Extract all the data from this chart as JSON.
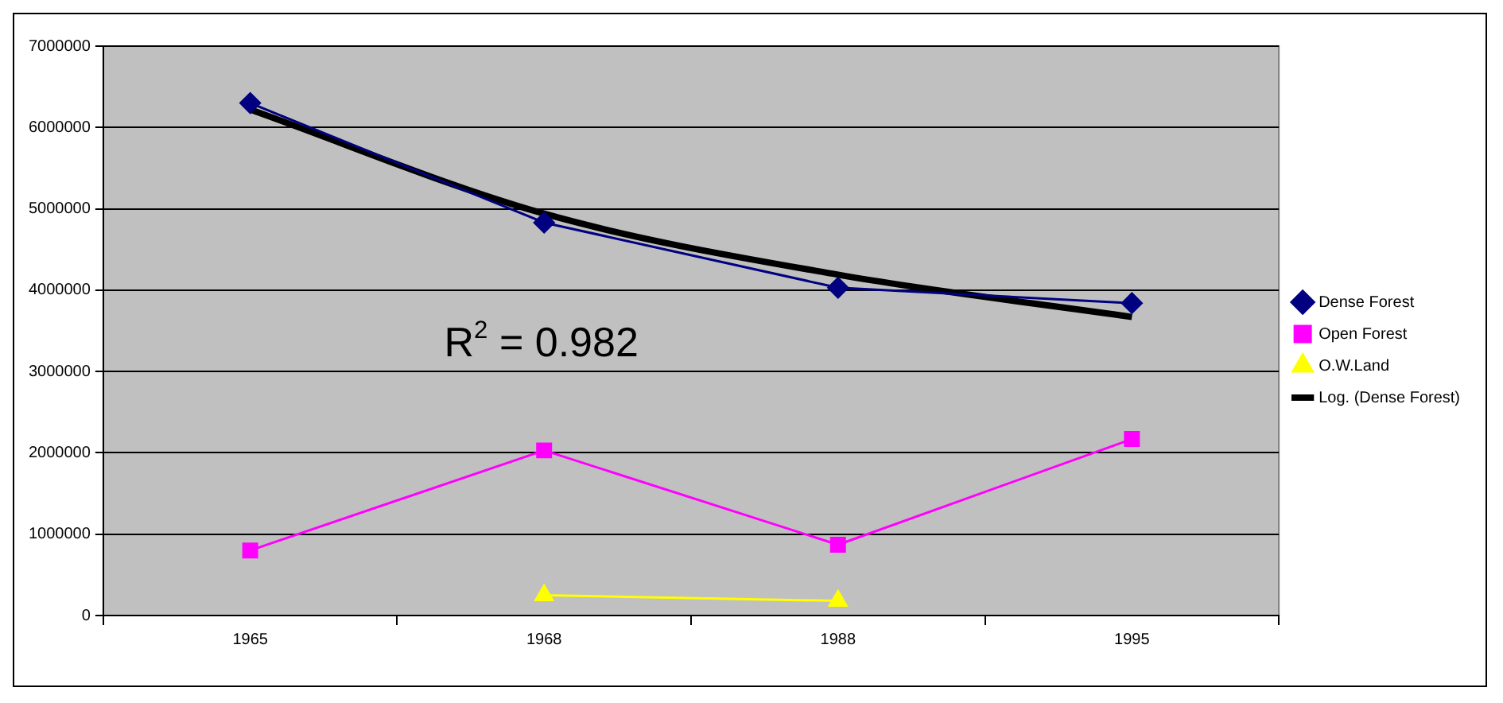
{
  "chart_data": {
    "type": "line",
    "categories": [
      "1965",
      "1968",
      "1988",
      "1995"
    ],
    "series": [
      {
        "name": "Dense Forest",
        "color": "#000080",
        "marker": "diamond",
        "values": [
          6300000,
          4830000,
          4030000,
          3840000
        ]
      },
      {
        "name": "Open Forest",
        "color": "#ff00ff",
        "marker": "square",
        "values": [
          800000,
          2030000,
          870000,
          2170000
        ]
      },
      {
        "name": "O.W.Land",
        "color": "#ffff00",
        "marker": "triangle",
        "values": [
          null,
          250000,
          180000,
          null
        ]
      },
      {
        "name": "Log. (Dense Forest)",
        "color": "#000000",
        "marker": "none",
        "values": [
          6220000,
          4940000,
          4190000,
          3670000
        ]
      }
    ],
    "annotations": [
      "R$^{2}$ = 0.982"
    ],
    "ylim": [
      0,
      7000000
    ],
    "yticks": [
      0,
      1000000,
      2000000,
      3000000,
      4000000,
      5000000,
      6000000,
      7000000
    ],
    "grid": "y",
    "legend": "right"
  }
}
